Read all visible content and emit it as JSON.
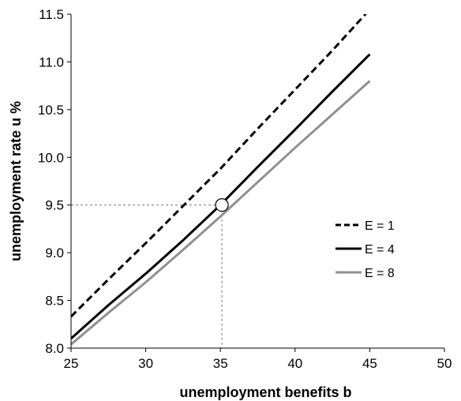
{
  "chart_data": {
    "type": "line",
    "title": "",
    "xlabel": "unemployment benefits b",
    "ylabel": "unemployment rate u %",
    "xlim": [
      25,
      50
    ],
    "ylim": [
      8.0,
      11.5
    ],
    "xticks": [
      25,
      30,
      35,
      40,
      45,
      50
    ],
    "yticks": [
      8.0,
      8.5,
      9.0,
      9.5,
      10.0,
      10.5,
      11.0,
      11.5
    ],
    "xtick_labels": [
      "25",
      "30",
      "35",
      "40",
      "45",
      "50"
    ],
    "ytick_labels": [
      "8.0",
      "8.5",
      "9.0",
      "9.5",
      "10.0",
      "10.5",
      "11.0",
      "11.5"
    ],
    "grid": false,
    "legend_position": "right",
    "series": [
      {
        "name": "E = 1",
        "style": "dashed",
        "color": "#000000",
        "x": [
          25,
          27.5,
          30,
          32.5,
          35,
          37.5,
          40,
          42.5,
          45
        ],
        "y": [
          8.33,
          8.72,
          9.1,
          9.49,
          9.88,
          10.3,
          10.71,
          11.12,
          11.55
        ]
      },
      {
        "name": "E = 4",
        "style": "solid",
        "color": "#000000",
        "x": [
          25,
          27.5,
          30,
          32.5,
          35,
          37.5,
          40,
          42.5,
          45
        ],
        "y": [
          8.1,
          8.45,
          8.78,
          9.13,
          9.5,
          9.9,
          10.29,
          10.69,
          11.08
        ]
      },
      {
        "name": "E = 8",
        "style": "solid",
        "color": "#909090",
        "x": [
          25,
          27.5,
          30,
          32.5,
          35,
          37.5,
          40,
          42.5,
          45
        ],
        "y": [
          8.04,
          8.37,
          8.69,
          9.03,
          9.38,
          9.74,
          10.1,
          10.45,
          10.8
        ]
      }
    ],
    "marker": {
      "x": 35.1,
      "y": 9.5
    },
    "reference_lines": {
      "x": 35.1,
      "y": 9.5
    }
  }
}
